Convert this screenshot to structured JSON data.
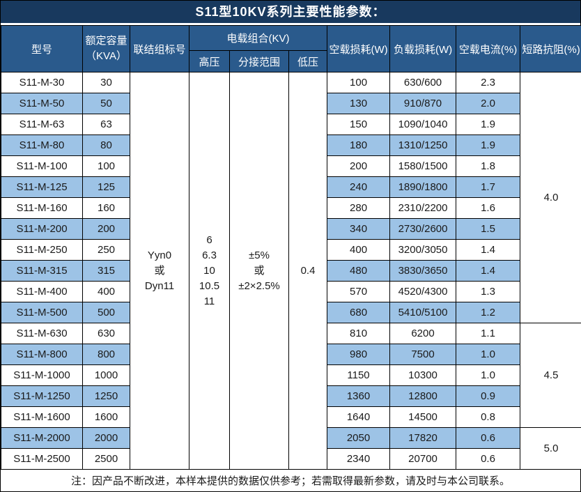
{
  "title": "S11型10KV系列主要性能参数：",
  "colors": {
    "title_bg": "#18395E",
    "header_bg": "#2A5A8C",
    "row_alt_bg": "#9DC3E6",
    "border": "#000000",
    "header_text": "#FFFFFF"
  },
  "header": {
    "model": "型号",
    "capacity": "额定容量\n（KVA）",
    "vector_group": "联结组标号",
    "voltage_combo": "电载组合(KV)",
    "hv": "高压",
    "tap_range": "分接范围",
    "lv": "低压",
    "no_load_loss": "空载损耗(W)",
    "load_loss": "负载损耗(W)",
    "no_load_current": "空载电流(%)",
    "impedance": "短路抗阻(%)"
  },
  "merged": {
    "vector_group": "Yyn0\n或\nDyn11",
    "hv": "6\n6.3\n10\n10.5\n11",
    "tap_range": "±5%\n或\n±2×2.5%",
    "lv": "0.4"
  },
  "rows": [
    {
      "model": "S11-M-30",
      "capacity": "30",
      "no_load_loss": "100",
      "load_loss": "630/600",
      "no_load_current": "2.3"
    },
    {
      "model": "S11-M-50",
      "capacity": "50",
      "no_load_loss": "130",
      "load_loss": "910/870",
      "no_load_current": "2.0"
    },
    {
      "model": "S11-M-63",
      "capacity": "63",
      "no_load_loss": "150",
      "load_loss": "1090/1040",
      "no_load_current": "1.9"
    },
    {
      "model": "S11-M-80",
      "capacity": "80",
      "no_load_loss": "180",
      "load_loss": "1310/1250",
      "no_load_current": "1.9"
    },
    {
      "model": "S11-M-100",
      "capacity": "100",
      "no_load_loss": "200",
      "load_loss": "1580/1500",
      "no_load_current": "1.8"
    },
    {
      "model": "S11-M-125",
      "capacity": "125",
      "no_load_loss": "240",
      "load_loss": "1890/1800",
      "no_load_current": "1.7"
    },
    {
      "model": "S11-M-160",
      "capacity": "160",
      "no_load_loss": "280",
      "load_loss": "2310/2200",
      "no_load_current": "1.6"
    },
    {
      "model": "S11-M-200",
      "capacity": "200",
      "no_load_loss": "340",
      "load_loss": "2730/2600",
      "no_load_current": "1.5"
    },
    {
      "model": "S11-M-250",
      "capacity": "250",
      "no_load_loss": "400",
      "load_loss": "3200/3050",
      "no_load_current": "1.4"
    },
    {
      "model": "S11-M-315",
      "capacity": "315",
      "no_load_loss": "480",
      "load_loss": "3830/3650",
      "no_load_current": "1.4"
    },
    {
      "model": "S11-M-400",
      "capacity": "400",
      "no_load_loss": "570",
      "load_loss": "4520/4300",
      "no_load_current": "1.3"
    },
    {
      "model": "S11-M-500",
      "capacity": "500",
      "no_load_loss": "680",
      "load_loss": "5410/5100",
      "no_load_current": "1.2"
    },
    {
      "model": "S11-M-630",
      "capacity": "630",
      "no_load_loss": "810",
      "load_loss": "6200",
      "no_load_current": "1.1"
    },
    {
      "model": "S11-M-800",
      "capacity": "800",
      "no_load_loss": "980",
      "load_loss": "7500",
      "no_load_current": "1.0"
    },
    {
      "model": "S11-M-1000",
      "capacity": "1000",
      "no_load_loss": "1150",
      "load_loss": "10300",
      "no_load_current": "1.0"
    },
    {
      "model": "S11-M-1250",
      "capacity": "1250",
      "no_load_loss": "1360",
      "load_loss": "12800",
      "no_load_current": "0.9"
    },
    {
      "model": "S11-M-1600",
      "capacity": "1600",
      "no_load_loss": "1640",
      "load_loss": "14500",
      "no_load_current": "0.8"
    },
    {
      "model": "S11-M-2000",
      "capacity": "2000",
      "no_load_loss": "2050",
      "load_loss": "17820",
      "no_load_current": "0.6"
    },
    {
      "model": "S11-M-2500",
      "capacity": "2500",
      "no_load_loss": "2340",
      "load_loss": "20700",
      "no_load_current": "0.6"
    }
  ],
  "impedance_groups": [
    {
      "value": "4.0",
      "rows": 12
    },
    {
      "value": "4.5",
      "rows": 5
    },
    {
      "value": "5.0",
      "rows": 2
    }
  ],
  "footer_note": "注：因产品不断改进，本样本提供的数据仅供参考；若需取得最新参数，请及时与本公司联系。"
}
